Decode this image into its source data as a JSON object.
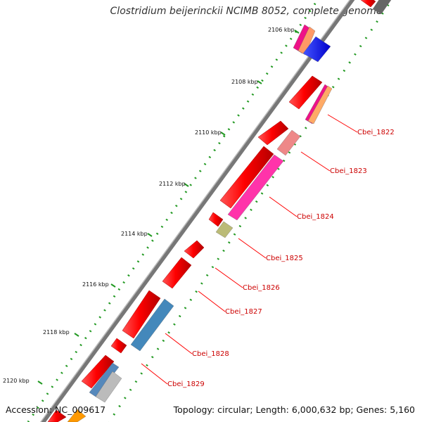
{
  "title": "Clostridium beijerinckii NCIMB 8052, complete genome",
  "footer": {
    "accession_label": "Accession:",
    "accession": "NC_009617",
    "topology": "Topology: circular; Length: 6,000,632 bp; Genes: 5,160"
  },
  "kbp_labels": [
    "2106 kbp",
    "2108 kbp",
    "2110 kbp",
    "2112 kbp",
    "2114 kbp",
    "2116 kbp",
    "2118 kbp",
    "2120 kbp"
  ],
  "gene_labels": [
    "Cbei_1822",
    "Cbei_1823",
    "Cbei_1824",
    "Cbei_1825",
    "Cbei_1826",
    "Cbei_1827",
    "Cbei_1828",
    "Cbei_1829"
  ],
  "colors": {
    "backbone": "#777777",
    "forward_cds": "#ff0000",
    "tick": "#229922",
    "label_line": "#ff0000"
  }
}
